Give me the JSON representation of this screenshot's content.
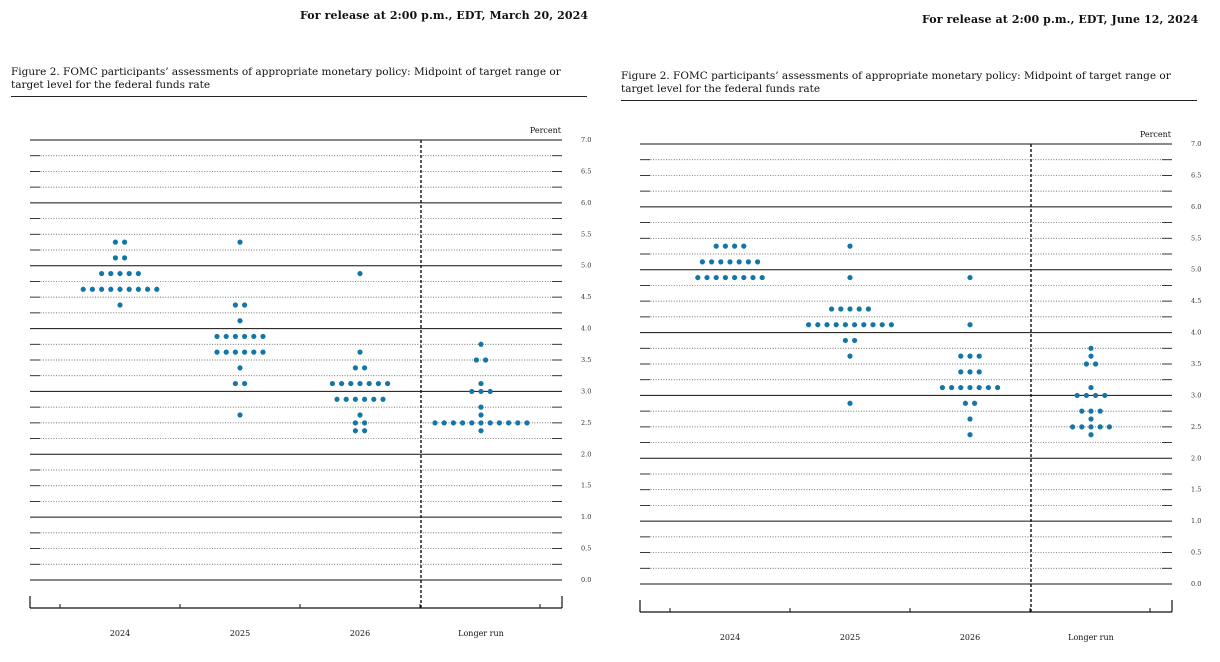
{
  "chart_data": [
    {
      "type": "scatter",
      "release": "For release at 2:00 p.m., EDT, March 20, 2024",
      "title": "Figure 2.  FOMC participants’ assessments of appropriate monetary policy:  Midpoint of target range or target level for the federal funds rate",
      "ylabel": "Percent",
      "ylim": [
        0,
        7
      ],
      "y_ticks": [
        "7.0",
        "6.5",
        "6.0",
        "5.5",
        "5.0",
        "4.5",
        "4.0",
        "3.5",
        "3.0",
        "2.5",
        "2.0",
        "1.5",
        "1.0",
        "0.5",
        "0.0"
      ],
      "categories": [
        "2024",
        "2025",
        "2026",
        "Longer run"
      ],
      "dots": [
        {
          "year": "2024",
          "counts": [
            [
              5.375,
              2
            ],
            [
              5.125,
              2
            ],
            [
              4.875,
              5
            ],
            [
              4.625,
              9
            ],
            [
              4.375,
              1
            ]
          ]
        },
        {
          "year": "2025",
          "counts": [
            [
              5.375,
              1
            ],
            [
              4.375,
              2
            ],
            [
              4.125,
              1
            ],
            [
              3.875,
              6
            ],
            [
              3.625,
              6
            ],
            [
              3.375,
              1
            ],
            [
              3.125,
              2
            ],
            [
              2.625,
              1
            ]
          ]
        },
        {
          "year": "2026",
          "counts": [
            [
              4.875,
              1
            ],
            [
              3.625,
              1
            ],
            [
              3.375,
              2
            ],
            [
              3.125,
              7
            ],
            [
              2.875,
              6
            ],
            [
              2.625,
              1
            ],
            [
              2.5,
              2
            ],
            [
              2.375,
              2
            ]
          ]
        },
        {
          "year": "Longer run",
          "counts": [
            [
              3.75,
              1
            ],
            [
              3.5,
              2
            ],
            [
              3.125,
              1
            ],
            [
              3.0,
              3
            ],
            [
              2.75,
              1
            ],
            [
              2.625,
              1
            ],
            [
              2.5,
              11
            ],
            [
              2.375,
              1
            ]
          ]
        }
      ],
      "dot_color": "#1276a6"
    },
    {
      "type": "scatter",
      "release": "For release at 2:00 p.m., EDT, June 12, 2024",
      "title": "Figure 2.  FOMC participants’ assessments of appropriate monetary policy:  Midpoint of target range or target level for the federal funds rate",
      "ylabel": "Percent",
      "ylim": [
        0,
        7
      ],
      "y_ticks": [
        "7.0",
        "6.5",
        "6.0",
        "5.5",
        "5.0",
        "4.5",
        "4.0",
        "3.5",
        "3.0",
        "2.5",
        "2.0",
        "1.5",
        "1.0",
        "0.5",
        "0.0"
      ],
      "categories": [
        "2024",
        "2025",
        "2026",
        "Longer run"
      ],
      "dots": [
        {
          "year": "2024",
          "counts": [
            [
              5.375,
              4
            ],
            [
              5.125,
              7
            ],
            [
              4.875,
              8
            ]
          ]
        },
        {
          "year": "2025",
          "counts": [
            [
              5.375,
              1
            ],
            [
              4.875,
              1
            ],
            [
              4.375,
              5
            ],
            [
              4.125,
              10
            ],
            [
              3.875,
              2
            ],
            [
              3.625,
              1
            ],
            [
              2.875,
              1
            ]
          ]
        },
        {
          "year": "2026",
          "counts": [
            [
              4.875,
              1
            ],
            [
              4.125,
              1
            ],
            [
              3.625,
              3
            ],
            [
              3.375,
              3
            ],
            [
              3.125,
              7
            ],
            [
              2.875,
              2
            ],
            [
              2.625,
              1
            ],
            [
              2.375,
              1
            ]
          ]
        },
        {
          "year": "Longer run",
          "counts": [
            [
              3.75,
              1
            ],
            [
              3.625,
              1
            ],
            [
              3.5,
              2
            ],
            [
              3.125,
              1
            ],
            [
              3.0,
              4
            ],
            [
              2.75,
              3
            ],
            [
              2.625,
              1
            ],
            [
              2.5,
              5
            ],
            [
              2.375,
              1
            ]
          ]
        }
      ],
      "dot_color": "#1276a6"
    }
  ]
}
